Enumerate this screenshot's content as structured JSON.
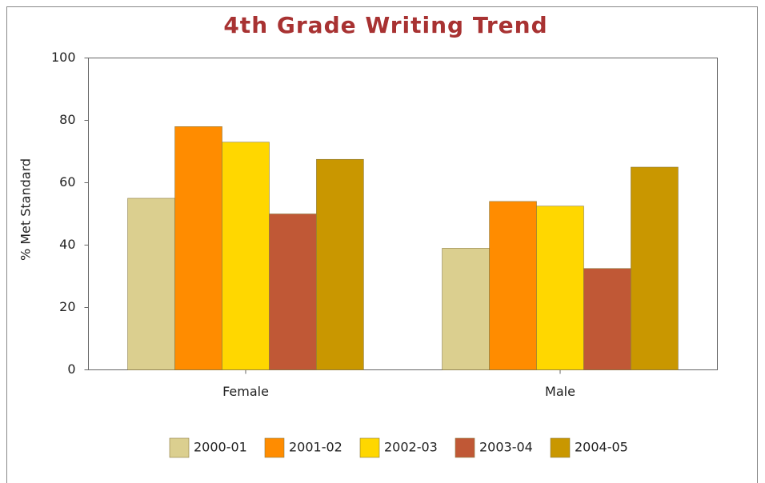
{
  "chart_data": {
    "type": "bar",
    "title": "4th Grade Writing Trend",
    "y_label": "% Met Standard",
    "categories": [
      "Female",
      "Male"
    ],
    "series": [
      {
        "name": "2000-01",
        "color": "#dbcf8f",
        "values": [
          55,
          39
        ]
      },
      {
        "name": "2001-02",
        "color": "#ff8c00",
        "values": [
          78,
          54
        ]
      },
      {
        "name": "2002-03",
        "color": "#ffd700",
        "values": [
          73,
          52.5
        ]
      },
      {
        "name": "2003-04",
        "color": "#c05836",
        "values": [
          50,
          32.5
        ]
      },
      {
        "name": "2004-05",
        "color": "#c99700",
        "values": [
          67.5,
          65
        ]
      }
    ],
    "ylim": [
      0,
      100
    ],
    "yticks": [
      0,
      20,
      40,
      60,
      80,
      100
    ],
    "legend": "bottom"
  }
}
